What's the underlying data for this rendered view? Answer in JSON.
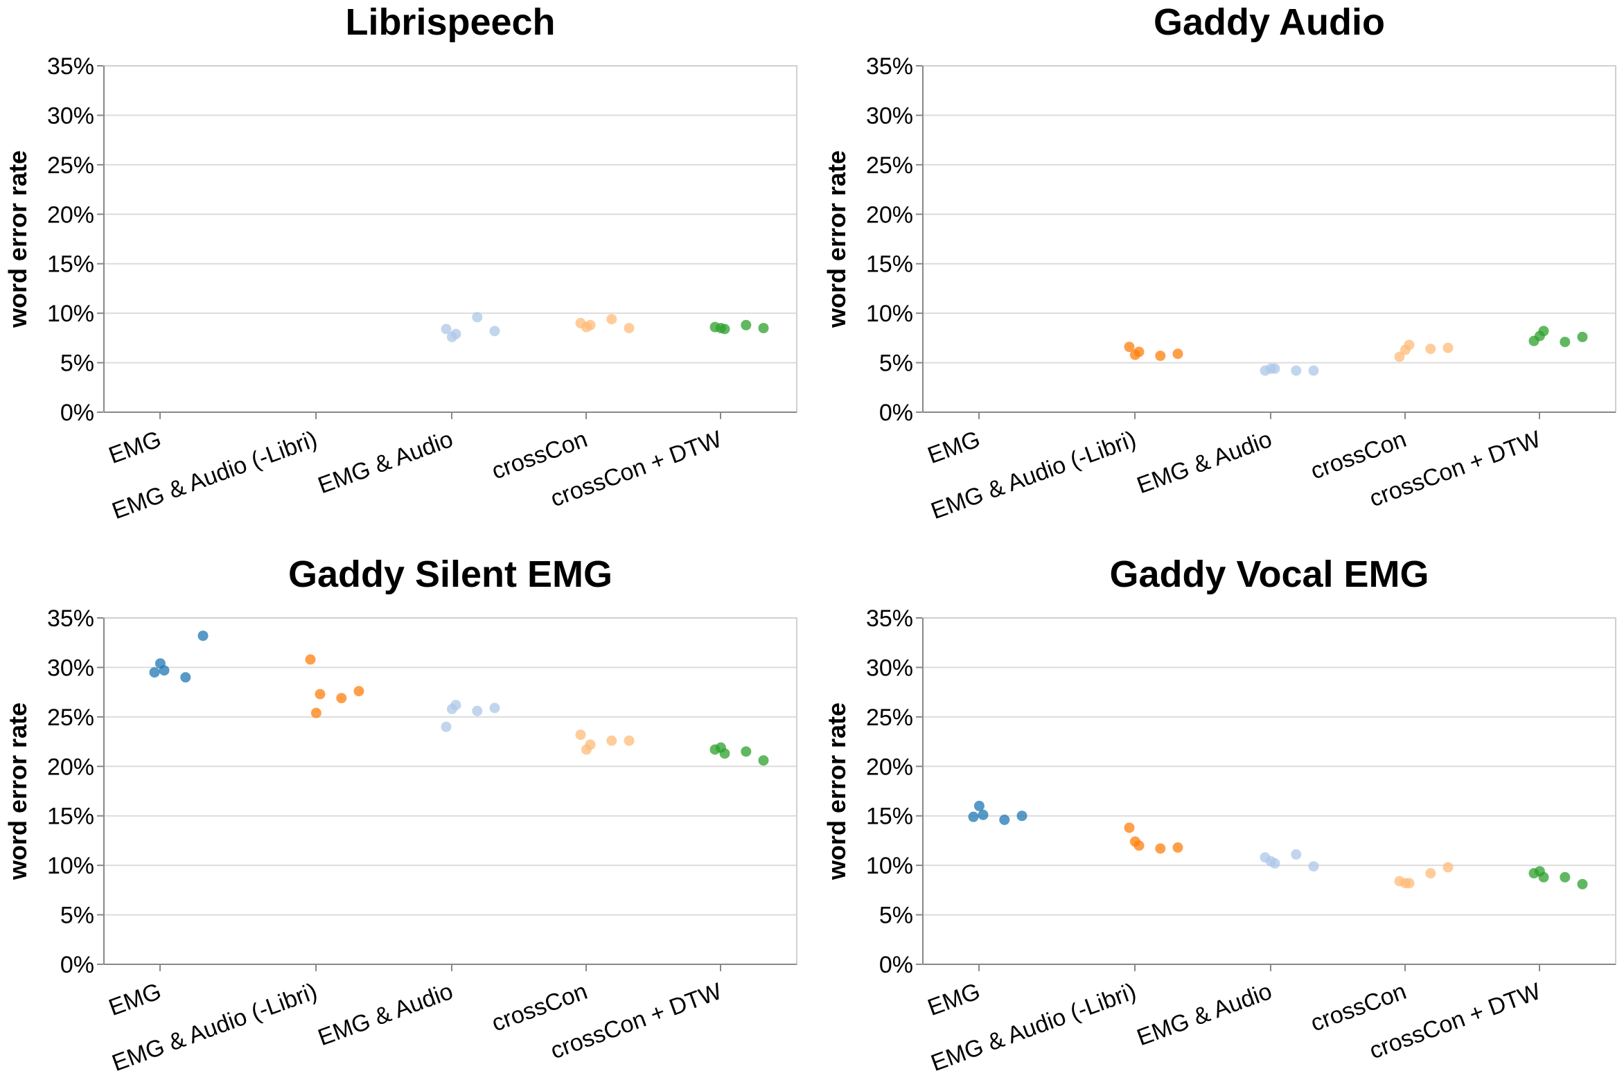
{
  "chart_data": [
    {
      "type": "scatter",
      "title": "Librispeech",
      "ylabel": "word error rate",
      "xlabel": "",
      "ylim": [
        0,
        0.35
      ],
      "yticks": [
        "0%",
        "5%",
        "10%",
        "15%",
        "20%",
        "25%",
        "30%",
        "35%"
      ],
      "categories": [
        "EMG",
        "EMG & Audio (-Libri)",
        "EMG & Audio",
        "crossCon",
        "crossCon + DTW"
      ],
      "grid": true,
      "series": [
        {
          "category": "EMG",
          "color": "#1f77b4",
          "values": []
        },
        {
          "category": "EMG & Audio (-Libri)",
          "color": "#ff7f0e",
          "values": []
        },
        {
          "category": "EMG & Audio",
          "color": "#aec7e8",
          "values": [
            0.084,
            0.096,
            0.076,
            0.082,
            0.079
          ]
        },
        {
          "category": "crossCon",
          "color": "#ffbb78",
          "values": [
            0.09,
            0.094,
            0.086,
            0.085,
            0.088
          ]
        },
        {
          "category": "crossCon + DTW",
          "color": "#2ca02c",
          "values": [
            0.086,
            0.088,
            0.085,
            0.085,
            0.084
          ]
        }
      ]
    },
    {
      "type": "scatter",
      "title": "Gaddy Audio",
      "ylabel": "word error rate",
      "xlabel": "",
      "ylim": [
        0,
        0.35
      ],
      "yticks": [
        "0%",
        "5%",
        "10%",
        "15%",
        "20%",
        "25%",
        "30%",
        "35%"
      ],
      "categories": [
        "EMG",
        "EMG & Audio (-Libri)",
        "EMG & Audio",
        "crossCon",
        "crossCon + DTW"
      ],
      "grid": true,
      "series": [
        {
          "category": "EMG",
          "color": "#1f77b4",
          "values": []
        },
        {
          "category": "EMG & Audio (-Libri)",
          "color": "#ff7f0e",
          "values": [
            0.066,
            0.057,
            0.058,
            0.059,
            0.061
          ]
        },
        {
          "category": "EMG & Audio",
          "color": "#aec7e8",
          "values": [
            0.042,
            0.042,
            0.044,
            0.042,
            0.044
          ]
        },
        {
          "category": "crossCon",
          "color": "#ffbb78",
          "values": [
            0.056,
            0.064,
            0.063,
            0.065,
            0.068
          ]
        },
        {
          "category": "crossCon + DTW",
          "color": "#2ca02c",
          "values": [
            0.072,
            0.071,
            0.077,
            0.076,
            0.082
          ]
        }
      ]
    },
    {
      "type": "scatter",
      "title": "Gaddy Silent EMG",
      "ylabel": "word error rate",
      "xlabel": "",
      "ylim": [
        0,
        0.35
      ],
      "yticks": [
        "0%",
        "5%",
        "10%",
        "15%",
        "20%",
        "25%",
        "30%",
        "35%"
      ],
      "categories": [
        "EMG",
        "EMG & Audio (-Libri)",
        "EMG & Audio",
        "crossCon",
        "crossCon + DTW"
      ],
      "grid": true,
      "series": [
        {
          "category": "EMG",
          "color": "#1f77b4",
          "values": [
            0.295,
            0.29,
            0.304,
            0.332,
            0.297
          ]
        },
        {
          "category": "EMG & Audio (-Libri)",
          "color": "#ff7f0e",
          "values": [
            0.308,
            0.269,
            0.254,
            0.276,
            0.273
          ]
        },
        {
          "category": "EMG & Audio",
          "color": "#aec7e8",
          "values": [
            0.24,
            0.256,
            0.258,
            0.259,
            0.262
          ]
        },
        {
          "category": "crossCon",
          "color": "#ffbb78",
          "values": [
            0.232,
            0.226,
            0.217,
            0.226,
            0.222
          ]
        },
        {
          "category": "crossCon + DTW",
          "color": "#2ca02c",
          "values": [
            0.217,
            0.215,
            0.219,
            0.206,
            0.213
          ]
        }
      ]
    },
    {
      "type": "scatter",
      "title": "Gaddy Vocal EMG",
      "ylabel": "word error rate",
      "xlabel": "",
      "ylim": [
        0,
        0.35
      ],
      "yticks": [
        "0%",
        "5%",
        "10%",
        "15%",
        "20%",
        "25%",
        "30%",
        "35%"
      ],
      "categories": [
        "EMG",
        "EMG & Audio (-Libri)",
        "EMG & Audio",
        "crossCon",
        "crossCon + DTW"
      ],
      "grid": true,
      "series": [
        {
          "category": "EMG",
          "color": "#1f77b4",
          "values": [
            0.149,
            0.146,
            0.16,
            0.15,
            0.151
          ]
        },
        {
          "category": "EMG & Audio (-Libri)",
          "color": "#ff7f0e",
          "values": [
            0.138,
            0.117,
            0.124,
            0.118,
            0.12
          ]
        },
        {
          "category": "EMG & Audio",
          "color": "#aec7e8",
          "values": [
            0.108,
            0.111,
            0.104,
            0.099,
            0.102
          ]
        },
        {
          "category": "crossCon",
          "color": "#ffbb78",
          "values": [
            0.084,
            0.092,
            0.082,
            0.098,
            0.082
          ]
        },
        {
          "category": "crossCon + DTW",
          "color": "#2ca02c",
          "values": [
            0.092,
            0.088,
            0.094,
            0.081,
            0.088
          ]
        }
      ]
    }
  ]
}
